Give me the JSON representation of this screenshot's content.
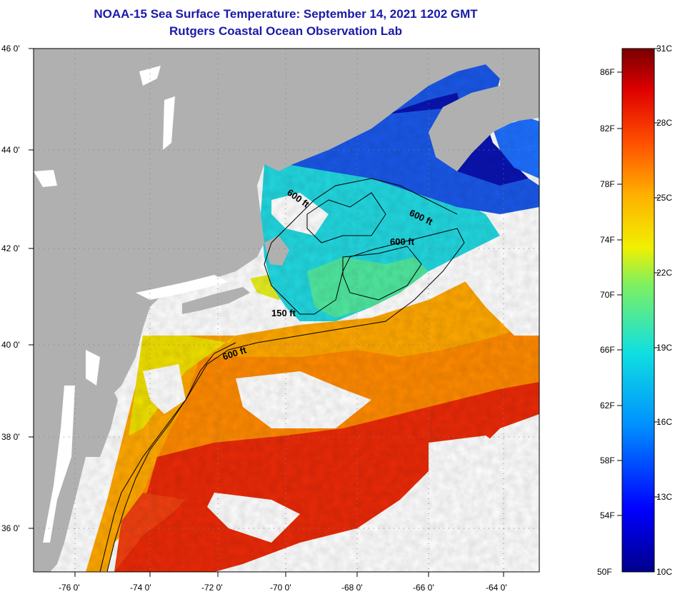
{
  "header": {
    "title": "NOAA-15 Sea Surface Temperature:  September 14, 2021 1202 GMT",
    "subtitle": "Rutgers Coastal Ocean Observation Lab"
  },
  "map": {
    "lat_labels": [
      "46 0'",
      "44 0'",
      "42 0'",
      "40 0'",
      "38 0'",
      "36 0'"
    ],
    "lon_labels": [
      "-76 0'",
      "-74 0'",
      "-72 0'",
      "-70 0'",
      "-68 0'",
      "-66 0'",
      "-64 0'"
    ],
    "contour_labels": [
      "600 ft",
      "600 ft",
      "600 ft",
      "150 ft",
      "600 ft"
    ],
    "colors": {
      "land": "#b0b0b0",
      "cloud": "#ffffff",
      "cold": "#0a18b8",
      "cool": "#19c8e8",
      "warm": "#ffb000",
      "hot": "#e82000"
    }
  },
  "colorbar": {
    "fahrenheit": [
      "86F",
      "82F",
      "78F",
      "74F",
      "70F",
      "66F",
      "62F",
      "58F",
      "54F",
      "50F"
    ],
    "celsius": [
      "31C",
      "28C",
      "25C",
      "22C",
      "19C",
      "16C",
      "13C",
      "10C"
    ],
    "min_f": 50,
    "max_c": 31
  }
}
